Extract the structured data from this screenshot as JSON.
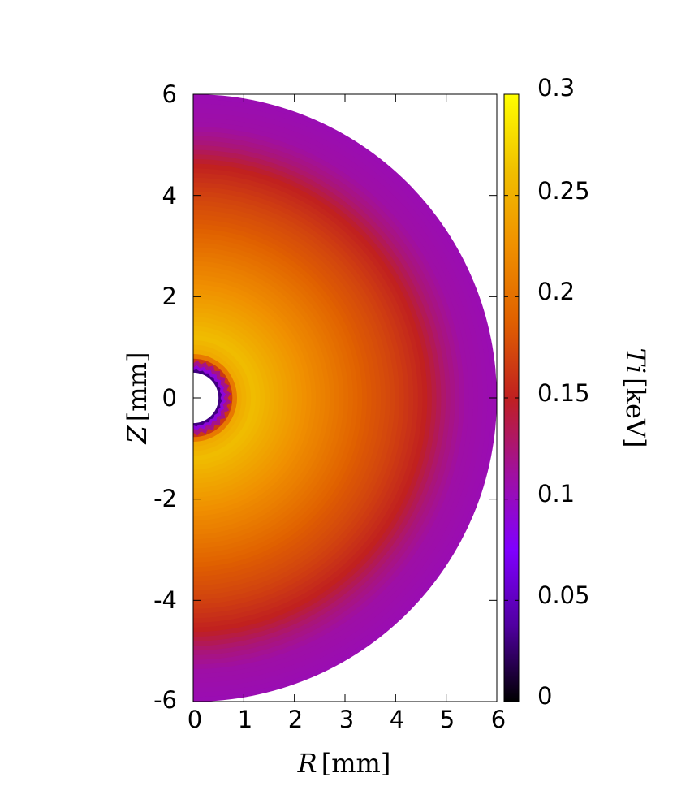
{
  "chart_data": {
    "type": "heatmap",
    "title": "",
    "xlabel": {
      "var": "R",
      "unit": "[mm]"
    },
    "ylabel": {
      "var": "Z",
      "unit": "[mm]"
    },
    "colorbar_label": {
      "var": "Ti",
      "unit": "[keV]"
    },
    "xlim": [
      0,
      6
    ],
    "ylim": [
      -6,
      6
    ],
    "clim": [
      0,
      0.3
    ],
    "x_ticks": [
      "0",
      "1",
      "2",
      "3",
      "4",
      "5",
      "6"
    ],
    "y_ticks": [
      "6",
      "4",
      "2",
      "0",
      "-2",
      "-4",
      "-6"
    ],
    "colorbar_ticks": [
      "0.3",
      "0.25",
      "0.2",
      "0.15",
      "0.1",
      "0.05",
      "0"
    ],
    "domain_radius_mm": 6,
    "void_radius_mm": 0.5,
    "radial_profile": {
      "r_mm": [
        0,
        0.5,
        0.7,
        0.9,
        1.2,
        1.6,
        2.2,
        2.8,
        3.4,
        4.0,
        4.6,
        5.0,
        5.4,
        6.0
      ],
      "Ti_keV": [
        0.0,
        0.0,
        0.15,
        0.245,
        0.26,
        0.245,
        0.225,
        0.205,
        0.185,
        0.17,
        0.15,
        0.125,
        0.11,
        0.105
      ]
    },
    "colormap": [
      "#000000",
      "#5000a0",
      "#8000ff",
      "#a010a0",
      "#c02020",
      "#e06000",
      "#f09000",
      "#f0c000",
      "#ffff00"
    ],
    "grid": false,
    "legend": "colorbar-right"
  }
}
